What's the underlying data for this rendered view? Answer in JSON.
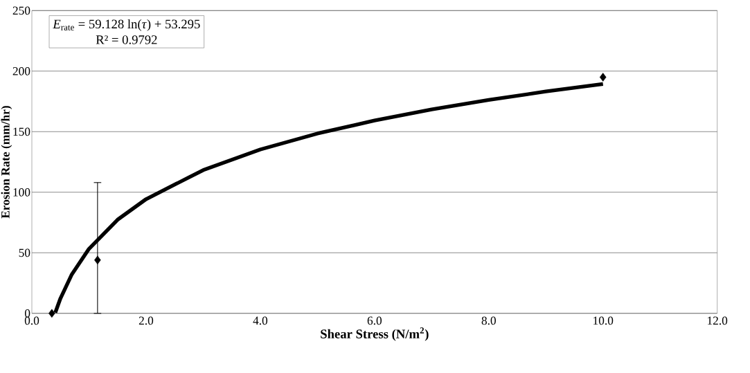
{
  "chart_data": {
    "type": "scatter",
    "xlabel": "Shear Stress (N/m$^{2}$)",
    "ylabel": "Erosion Rate (mm/hr)",
    "xlim": [
      0,
      12
    ],
    "ylim": [
      0,
      250
    ],
    "xticks": [
      {
        "value": 0,
        "label": "0.0"
      },
      {
        "value": 2,
        "label": "2.0"
      },
      {
        "value": 4,
        "label": "4.0"
      },
      {
        "value": 6,
        "label": "6.0"
      },
      {
        "value": 8,
        "label": "8.0"
      },
      {
        "value": 10,
        "label": "10.0"
      },
      {
        "value": 12,
        "label": "12.0"
      }
    ],
    "yticks": [
      0,
      50,
      100,
      150,
      200,
      250
    ],
    "grid": "y",
    "annotations": [
      "*E*$_{rate}$ = 59.128 ln(*τ*) + 53.295",
      "R² = 0.9792"
    ],
    "series": [
      {
        "color": "#000000",
        "marker": "diamond",
        "x": [
          0.35,
          1.15,
          10.0
        ],
        "values": [
          0,
          44,
          195
        ],
        "errors": [
          null,
          [
            0,
            108
          ],
          null
        ]
      },
      {
        "type": "line",
        "color": "#000000",
        "marker": "none",
        "line_style": "solid",
        "x": [
          0.41,
          0.5,
          0.7,
          1.0,
          1.5,
          2,
          3,
          4,
          5,
          6,
          7,
          8,
          9,
          10
        ],
        "values": [
          0.6,
          12.3,
          32.2,
          53.3,
          77.3,
          94.3,
          118.3,
          135.3,
          148.5,
          159.2,
          168.4,
          176.2,
          183.2,
          189.4
        ]
      }
    ]
  }
}
